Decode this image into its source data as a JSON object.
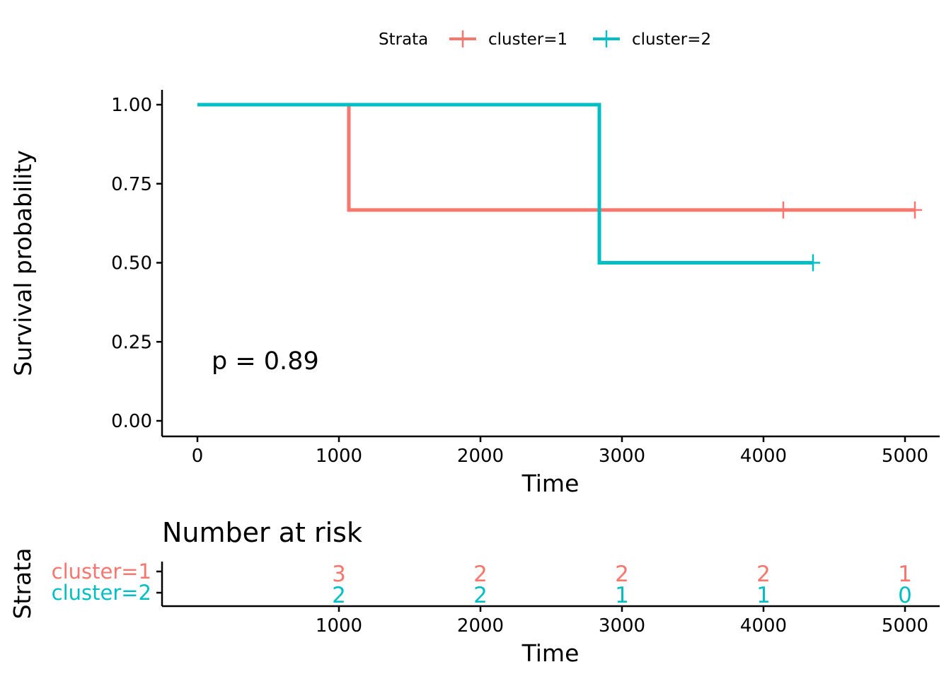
{
  "legend": {
    "title": "Strata",
    "placement": "top"
  },
  "risk_table": {
    "title": "Number at risk",
    "ylabel": "Strata",
    "xlabel": "Time",
    "times": [
      1000,
      2000,
      3000,
      4000,
      5000
    ],
    "x_tick_labels": [
      "1000",
      "2000",
      "3000",
      "4000",
      "5000"
    ],
    "rows": [
      {
        "label": "cluster=1",
        "color": "#F8766D",
        "counts": [
          "3",
          "2",
          "2",
          "2",
          "1"
        ]
      },
      {
        "label": "cluster=2",
        "color": "#00BFC4",
        "counts": [
          "2",
          "2",
          "1",
          "1",
          "0"
        ]
      }
    ]
  },
  "chart_data": {
    "type": "line",
    "subtype": "kaplan-meier step",
    "xlabel": "Time",
    "ylabel": "Survival probability",
    "xlim": [
      -250,
      5250
    ],
    "ylim": [
      -0.05,
      1.05
    ],
    "x_ticks": [
      0,
      1000,
      2000,
      3000,
      4000,
      5000
    ],
    "x_tick_labels": [
      "0",
      "1000",
      "2000",
      "3000",
      "4000",
      "5000"
    ],
    "y_ticks": [
      0,
      0.25,
      0.5,
      0.75,
      1.0
    ],
    "y_tick_labels": [
      "0.00",
      "0.25",
      "0.50",
      "0.75",
      "1.00"
    ],
    "grid": false,
    "annotation": {
      "text": "p = 0.89",
      "x": 100,
      "y": 0.19
    },
    "series": [
      {
        "name": "cluster=1",
        "color": "#F8766D",
        "steps": [
          [
            0,
            1.0
          ],
          [
            1070,
            0.667
          ],
          [
            5070,
            0.667
          ]
        ],
        "censored": [
          [
            4140,
            0.667
          ],
          [
            5070,
            0.667
          ]
        ]
      },
      {
        "name": "cluster=2",
        "color": "#00BFC4",
        "steps": [
          [
            0,
            1.0
          ],
          [
            2840,
            0.5
          ],
          [
            4350,
            0.5
          ]
        ],
        "censored": [
          [
            4350,
            0.5
          ]
        ]
      }
    ]
  }
}
